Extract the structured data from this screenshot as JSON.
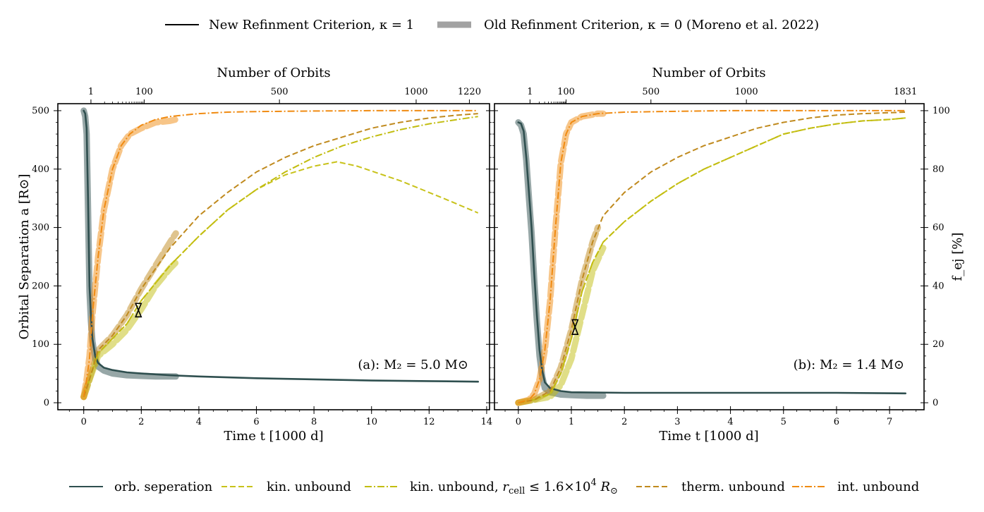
{
  "top_legend": {
    "new_label": "New Refinment Criterion, κ = 1",
    "old_label": "Old Refinment Criterion, κ = 0 (Moreno et al. 2022)",
    "new_color": "#000000",
    "old_color": "#999999"
  },
  "bottom_legend": {
    "orb_label": "orb. seperation",
    "kin_label": "kin. unbound",
    "kincell_label_prefix": "kin. unbound, ",
    "kincell_label_math": "r",
    "kincell_label_sub": "cell",
    "kincell_label_rest": " ≤ 1.6×10",
    "kincell_label_sup": "4",
    "kincell_label_unit": " R",
    "kincell_label_unit_sub": "⊙",
    "therm_label": "therm. unbound",
    "int_label": "int. unbound"
  },
  "colors": {
    "orb": "#2f4f4f",
    "kin": "#c8c21a",
    "kincell": "#c2bd10",
    "therm": "#c08a1e",
    "int": "#f08b12"
  },
  "axes": {
    "left_ylabel": "Orbital Separation a   [R⊙]",
    "right_ylabel": "f_ej   [%]",
    "xlabel": "Time t [1000 d]",
    "top_xlabel": "Number of Orbits"
  },
  "chart_data": [
    {
      "type": "line",
      "panel": "a",
      "annotation": "(a): M₂ = 5.0 M⊙",
      "xlim": [
        -0.9,
        14.1
      ],
      "ylim_left": [
        -12,
        512
      ],
      "ylim_right": [
        -2.4,
        102.4
      ],
      "xticks": [
        0,
        2,
        4,
        6,
        8,
        10,
        12,
        14
      ],
      "yticks_left": [
        0,
        100,
        200,
        300,
        400,
        500
      ],
      "top_ticks": [
        {
          "x": 0.25,
          "label": "1"
        },
        {
          "x": 2.1,
          "label": "100"
        },
        {
          "x": 6.8,
          "label": "500"
        },
        {
          "x": 11.55,
          "label": "1000"
        },
        {
          "x": 13.4,
          "label": "1220"
        }
      ],
      "series": [
        {
          "name": "orb. seperation (new)",
          "axis": "left",
          "key": "orb",
          "style": "solid",
          "x": [
            0,
            0.05,
            0.1,
            0.15,
            0.2,
            0.25,
            0.3,
            0.4,
            0.5,
            0.7,
            1.0,
            1.5,
            2.0,
            3.0,
            4.0,
            6.0,
            8.0,
            10.0,
            12.0,
            13.7
          ],
          "y": [
            500,
            495,
            470,
            350,
            200,
            150,
            110,
            80,
            68,
            60,
            56,
            52,
            50,
            47,
            45,
            42,
            40,
            38,
            37,
            36
          ]
        },
        {
          "name": "orb. seperation (old)",
          "axis": "left",
          "key": "orb",
          "style": "old",
          "x": [
            0,
            0.05,
            0.1,
            0.15,
            0.2,
            0.25,
            0.3,
            0.4,
            0.5,
            0.7,
            1.0,
            1.5,
            2.0,
            2.5,
            3.2
          ],
          "y": [
            500,
            490,
            460,
            330,
            190,
            140,
            105,
            75,
            62,
            55,
            50,
            47,
            46,
            45,
            45
          ]
        },
        {
          "name": "kin. unbound",
          "axis": "right",
          "key": "kin",
          "style": "dash",
          "x": [
            0,
            0.2,
            0.5,
            1.0,
            1.5,
            2.0,
            3.0,
            4.0,
            5.0,
            6.0,
            7.0,
            8.0,
            8.8,
            9.5,
            11.0,
            12.5,
            13.7
          ],
          "y": [
            2,
            8,
            17,
            22,
            27,
            35,
            47,
            57,
            66,
            73,
            78,
            81,
            82.5,
            81,
            76,
            70,
            65
          ]
        },
        {
          "name": "kin. unbound, r_cell",
          "axis": "right",
          "key": "kincell",
          "style": "dashdot",
          "x": [
            0,
            0.2,
            0.5,
            1.0,
            1.5,
            2.0,
            3.0,
            4.0,
            5.0,
            6.0,
            7.0,
            8.0,
            9.0,
            10.0,
            11.0,
            12.0,
            13.0,
            13.7
          ],
          "y": [
            2,
            8,
            17,
            22,
            27,
            35,
            47,
            57,
            66,
            73,
            79,
            84,
            88,
            91,
            93.5,
            95.5,
            97,
            98
          ]
        },
        {
          "name": "therm. unbound",
          "axis": "right",
          "key": "therm",
          "style": "dash",
          "x": [
            0,
            0.2,
            0.5,
            1.0,
            1.5,
            2.0,
            3.0,
            4.0,
            5.0,
            6.0,
            7.0,
            8.0,
            9.0,
            10.0,
            11.0,
            12.0,
            13.0,
            13.7
          ],
          "y": [
            2,
            8,
            18,
            23,
            30,
            39,
            53,
            64,
            72,
            79,
            84,
            88,
            91,
            94,
            96,
            97.5,
            98.5,
            99
          ]
        },
        {
          "name": "int. unbound",
          "axis": "right",
          "key": "int",
          "style": "dashdot",
          "x": [
            0,
            0.1,
            0.2,
            0.3,
            0.5,
            0.7,
            1.0,
            1.3,
            1.6,
            2.0,
            2.5,
            3.0,
            4.0,
            5.0,
            6.0,
            8.0,
            10.0,
            12.0,
            13.7
          ],
          "y": [
            2,
            8,
            15,
            30,
            50,
            66,
            80,
            88,
            92,
            95,
            97,
            98,
            99,
            99.5,
            99.7,
            99.9,
            100,
            100,
            100
          ]
        },
        {
          "name": "therm. unbound (old)",
          "axis": "right",
          "key": "therm",
          "style": "old",
          "x": [
            0,
            0.2,
            0.5,
            1.0,
            1.5,
            2.0,
            2.5,
            3.0,
            3.2
          ],
          "y": [
            2,
            8,
            18,
            23,
            30,
            39,
            47,
            55,
            58
          ]
        },
        {
          "name": "kin. unbound (old)",
          "axis": "right",
          "key": "kincell",
          "style": "old",
          "x": [
            0,
            0.2,
            0.5,
            1.0,
            1.5,
            2.0,
            2.5,
            3.0,
            3.2
          ],
          "y": [
            2,
            8,
            16,
            20,
            25,
            32,
            40,
            46,
            48
          ]
        },
        {
          "name": "int. unbound (old)",
          "axis": "right",
          "key": "int",
          "style": "old",
          "x": [
            0,
            0.1,
            0.2,
            0.3,
            0.5,
            0.7,
            1.0,
            1.3,
            1.6,
            2.0,
            2.5,
            3.0,
            3.2
          ],
          "y": [
            2,
            8,
            16,
            30,
            50,
            66,
            80,
            88,
            92,
            94,
            96,
            96.5,
            97
          ]
        }
      ],
      "marker": {
        "x": 1.9,
        "y_low": 147,
        "y_high": 170
      }
    },
    {
      "type": "line",
      "panel": "b",
      "annotation": "(b): M₂ = 1.4 M⊙",
      "xlim": [
        -0.45,
        7.65
      ],
      "ylim_left": [
        -12,
        512
      ],
      "ylim_right": [
        -2.4,
        102.4
      ],
      "xticks": [
        0,
        1,
        2,
        3,
        4,
        5,
        6,
        7
      ],
      "yticks_right": [
        0,
        20,
        40,
        60,
        80,
        100
      ],
      "top_ticks": [
        {
          "x": 0.22,
          "label": "1"
        },
        {
          "x": 0.9,
          "label": "100"
        },
        {
          "x": 2.5,
          "label": "500"
        },
        {
          "x": 4.3,
          "label": "1000"
        },
        {
          "x": 7.3,
          "label": "1831"
        }
      ],
      "series": [
        {
          "name": "orb. seperation (new)",
          "axis": "left",
          "key": "orb",
          "style": "solid",
          "x": [
            0,
            0.05,
            0.1,
            0.15,
            0.2,
            0.25,
            0.3,
            0.35,
            0.4,
            0.45,
            0.5,
            0.6,
            0.8,
            1.0,
            2.0,
            3.0,
            4.0,
            5.0,
            6.0,
            7.3
          ],
          "y": [
            480,
            478,
            465,
            420,
            360,
            300,
            220,
            150,
            90,
            55,
            35,
            25,
            20,
            18,
            17,
            17,
            17,
            17,
            17,
            16
          ]
        },
        {
          "name": "orb. seperation (old)",
          "axis": "left",
          "key": "orb",
          "style": "old",
          "x": [
            0,
            0.05,
            0.1,
            0.15,
            0.2,
            0.25,
            0.3,
            0.35,
            0.4,
            0.45,
            0.5,
            0.6,
            0.8,
            1.0,
            1.3,
            1.6
          ],
          "y": [
            480,
            475,
            460,
            415,
            350,
            290,
            210,
            140,
            80,
            45,
            25,
            18,
            14,
            13,
            12,
            12
          ]
        },
        {
          "name": "kin. unbound",
          "axis": "right",
          "key": "kin",
          "style": "dash",
          "x": [
            0,
            0.3,
            0.6,
            0.8,
            1.0,
            1.2,
            1.4,
            1.6,
            2.0,
            2.5,
            3.0,
            3.5,
            4.0,
            4.5,
            5.0,
            5.5,
            6.0,
            6.5,
            7.0,
            7.3
          ],
          "y": [
            0,
            1,
            3,
            10,
            22,
            38,
            48,
            55,
            62,
            69,
            75,
            80,
            84,
            88,
            92,
            94,
            95.5,
            96.5,
            97,
            97.5
          ]
        },
        {
          "name": "kin. unbound, r_cell",
          "axis": "right",
          "key": "kincell",
          "style": "dashdot",
          "x": [
            0,
            0.3,
            0.6,
            0.8,
            1.0,
            1.2,
            1.4,
            1.6,
            2.0,
            2.5,
            3.0,
            3.5,
            4.0,
            4.5,
            5.0,
            5.5,
            6.0,
            6.5,
            7.0,
            7.3
          ],
          "y": [
            0,
            1,
            3,
            10,
            22,
            38,
            48,
            55,
            62,
            69,
            75,
            80,
            84,
            88,
            92,
            94,
            95.5,
            96.5,
            97,
            97.5
          ]
        },
        {
          "name": "therm. unbound",
          "axis": "right",
          "key": "therm",
          "style": "dash",
          "x": [
            0,
            0.3,
            0.6,
            0.8,
            1.0,
            1.2,
            1.4,
            1.6,
            2.0,
            2.5,
            3.0,
            3.5,
            4.0,
            4.5,
            5.0,
            5.5,
            6.0,
            6.5,
            7.0,
            7.3
          ],
          "y": [
            0,
            1,
            4,
            12,
            25,
            42,
            55,
            64,
            72,
            79,
            84,
            88,
            91,
            94,
            96,
            97.5,
            98.5,
            99,
            99.3,
            99.5
          ]
        },
        {
          "name": "int. unbound",
          "axis": "right",
          "key": "int",
          "style": "dashdot",
          "x": [
            0,
            0.2,
            0.3,
            0.4,
            0.5,
            0.6,
            0.7,
            0.8,
            0.9,
            1.0,
            1.2,
            1.5,
            2.0,
            3.0,
            4.0,
            5.0,
            6.0,
            7.3
          ],
          "y": [
            0,
            1,
            3,
            8,
            18,
            35,
            60,
            82,
            92,
            96,
            98,
            99,
            99.5,
            99.8,
            100,
            100,
            100,
            100
          ]
        },
        {
          "name": "therm. unbound (old)",
          "axis": "right",
          "key": "therm",
          "style": "old",
          "x": [
            0,
            0.3,
            0.6,
            0.8,
            1.0,
            1.2,
            1.4,
            1.5
          ],
          "y": [
            0,
            1,
            4,
            12,
            25,
            42,
            55,
            60
          ]
        },
        {
          "name": "kin. unbound (old)",
          "axis": "right",
          "key": "kincell",
          "style": "old",
          "x": [
            0,
            0.3,
            0.6,
            0.8,
            1.0,
            1.2,
            1.4,
            1.6
          ],
          "y": [
            0,
            1,
            2,
            6,
            15,
            30,
            45,
            53
          ]
        },
        {
          "name": "int. unbound (old)",
          "axis": "right",
          "key": "int",
          "style": "old",
          "x": [
            0,
            0.2,
            0.3,
            0.4,
            0.5,
            0.6,
            0.7,
            0.8,
            0.9,
            1.0,
            1.2,
            1.5,
            1.6
          ],
          "y": [
            0,
            1,
            3,
            8,
            18,
            35,
            60,
            82,
            92,
            96,
            98,
            99,
            99
          ]
        }
      ],
      "marker": {
        "x": 1.07,
        "y_low": 117,
        "y_high": 142
      }
    }
  ]
}
